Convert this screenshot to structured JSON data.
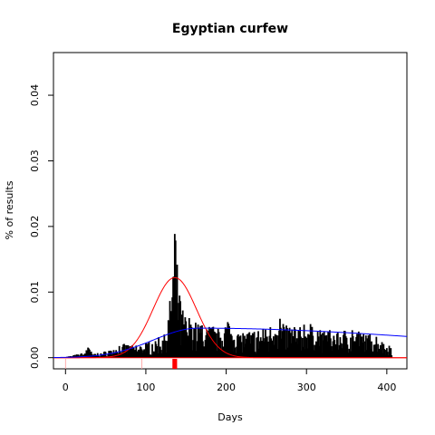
{
  "chart_data": {
    "type": "bar",
    "title": "Egyptian curfew",
    "xlabel": "Days",
    "ylabel": "% of results",
    "xlim": [
      -15,
      425
    ],
    "ylim": [
      -0.0017,
      0.0465
    ],
    "xticks": [
      {
        "value": 0,
        "label": "0"
      },
      {
        "value": 100,
        "label": "100"
      },
      {
        "value": 200,
        "label": "200"
      },
      {
        "value": 300,
        "label": "300"
      },
      {
        "value": 400,
        "label": "400"
      }
    ],
    "yticks": [
      {
        "value": 0.0,
        "label": "0.00"
      },
      {
        "value": 0.01,
        "label": "0.01"
      },
      {
        "value": 0.02,
        "label": "0.02"
      },
      {
        "value": 0.03,
        "label": "0.03"
      },
      {
        "value": 0.04,
        "label": "0.04"
      }
    ],
    "grid": false,
    "bar_color": "#000000",
    "bar_profile": {
      "x_range": [
        0,
        406
      ],
      "anchors": [
        [
          0,
          0.0001
        ],
        [
          10,
          0.0004
        ],
        [
          25,
          0.0008
        ],
        [
          28,
          0.0028
        ],
        [
          33,
          0.0006
        ],
        [
          45,
          0.0008
        ],
        [
          55,
          0.0012
        ],
        [
          65,
          0.0018
        ],
        [
          75,
          0.0022
        ],
        [
          85,
          0.0018
        ],
        [
          95,
          0.002
        ],
        [
          105,
          0.0025
        ],
        [
          115,
          0.003
        ],
        [
          122,
          0.004
        ],
        [
          128,
          0.006
        ],
        [
          132,
          0.012
        ],
        [
          134,
          0.0175
        ],
        [
          136,
          0.0193
        ],
        [
          138,
          0.0165
        ],
        [
          140,
          0.012
        ],
        [
          143,
          0.009
        ],
        [
          146,
          0.0075
        ],
        [
          150,
          0.0065
        ],
        [
          155,
          0.0062
        ],
        [
          160,
          0.0058
        ],
        [
          170,
          0.0052
        ],
        [
          180,
          0.005
        ],
        [
          190,
          0.0045
        ],
        [
          200,
          0.0052
        ],
        [
          206,
          0.006
        ],
        [
          212,
          0.0042
        ],
        [
          225,
          0.0038
        ],
        [
          240,
          0.0042
        ],
        [
          255,
          0.005
        ],
        [
          265,
          0.0065
        ],
        [
          275,
          0.005
        ],
        [
          290,
          0.0045
        ],
        [
          300,
          0.0055
        ],
        [
          320,
          0.0042
        ],
        [
          340,
          0.0042
        ],
        [
          355,
          0.0045
        ],
        [
          370,
          0.0038
        ],
        [
          385,
          0.0035
        ],
        [
          395,
          0.0025
        ],
        [
          405,
          0.0018
        ]
      ]
    },
    "series": [
      {
        "curve": "normal",
        "color": "#ff0000",
        "mean": 136,
        "sd": 27,
        "peak": 0.0122,
        "x_range": [
          -15,
          425
        ]
      },
      {
        "curve": "skewed",
        "color": "#0000ff",
        "peak_x": 165,
        "peak": 0.0045,
        "rise_width": 55,
        "tail_width": 320,
        "x_range": [
          -15,
          425
        ]
      }
    ],
    "baseline": {
      "value": 0.0,
      "color": "#ff0000"
    },
    "rug": [
      {
        "x": 0,
        "color": "#ff9999"
      },
      {
        "x": 95,
        "color": "#ff9999"
      },
      {
        "x": 134,
        "color": "#ff0000"
      },
      {
        "x": 135,
        "color": "#ff0000"
      },
      {
        "x": 136,
        "color": "#ff0000"
      },
      {
        "x": 137,
        "color": "#ff0000"
      },
      {
        "x": 138,
        "color": "#ff0000"
      }
    ]
  }
}
